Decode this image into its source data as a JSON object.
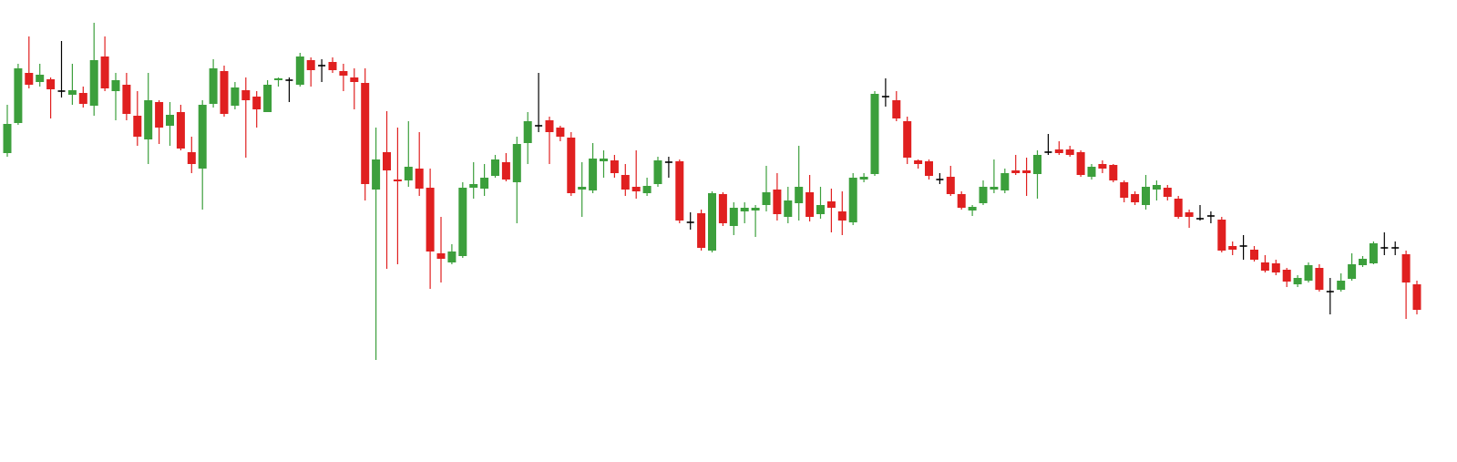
{
  "chart_data": {
    "type": "candlestick",
    "up_color": "#3c9f3c",
    "down_color": "#e02020",
    "flat_color": "#000000",
    "ylim": [
      0,
      500
    ],
    "open": [
      332,
      365,
      420,
      410,
      413,
      400,
      396,
      398,
      384,
      438,
      400,
      407,
      373,
      347,
      388,
      362,
      377,
      333,
      315,
      386,
      422,
      384,
      401,
      394,
      377,
      412,
      412,
      407,
      434,
      428,
      432,
      422,
      415,
      409,
      292,
      333,
      303,
      302,
      315,
      294,
      222,
      212,
      219,
      294,
      293,
      307,
      322,
      300,
      343,
      362,
      368,
      360,
      349,
      292,
      291,
      323,
      324,
      308,
      295,
      288,
      298,
      322,
      323,
      256,
      266,
      225,
      287,
      252,
      268,
      269,
      275,
      292,
      262,
      277,
      289,
      265,
      279,
      268,
      256,
      303,
      309,
      394,
      390,
      367,
      324,
      323,
      303,
      306,
      287,
      269,
      277,
      292,
      291,
      313,
      313,
      309,
      333,
      336,
      336,
      333,
      306,
      320,
      319,
      300,
      287,
      275,
      292,
      294,
      282,
      267,
      260,
      263,
      259,
      230,
      230,
      226,
      212,
      211,
      204,
      188,
      192,
      206,
      180,
      182,
      194,
      209,
      211,
      228,
      228,
      221,
      188
    ],
    "high": [
      385,
      430,
      460,
      430,
      415,
      455,
      430,
      405,
      475,
      460,
      420,
      420,
      400,
      420,
      390,
      388,
      385,
      350,
      390,
      435,
      428,
      410,
      415,
      400,
      412,
      415,
      415,
      442,
      437,
      435,
      437,
      430,
      425,
      425,
      360,
      378,
      360,
      367,
      355,
      315,
      262,
      232,
      300,
      322,
      320,
      330,
      332,
      350,
      377,
      420,
      372,
      362,
      355,
      322,
      343,
      335,
      330,
      320,
      335,
      305,
      328,
      328,
      325,
      267,
      270,
      290,
      289,
      278,
      278,
      275,
      318,
      310,
      295,
      340,
      308,
      295,
      293,
      290,
      310,
      310,
      400,
      414,
      400,
      372,
      325,
      325,
      310,
      318,
      290,
      275,
      302,
      325,
      315,
      330,
      327,
      335,
      353,
      345,
      340,
      335,
      320,
      324,
      320,
      302,
      290,
      308,
      302,
      297,
      285,
      270,
      275,
      268,
      262,
      235,
      242,
      230,
      220,
      215,
      206,
      198,
      212,
      210,
      195,
      200,
      222,
      219,
      235,
      245,
      235,
      225,
      192
    ],
    "low": [
      328,
      363,
      403,
      405,
      370,
      393,
      385,
      382,
      373,
      400,
      368,
      368,
      340,
      320,
      342,
      340,
      335,
      310,
      270,
      382,
      372,
      380,
      327,
      360,
      377,
      405,
      388,
      405,
      405,
      410,
      420,
      400,
      380,
      280,
      105,
      205,
      210,
      295,
      285,
      183,
      190,
      210,
      217,
      282,
      285,
      305,
      301,
      255,
      320,
      355,
      320,
      345,
      285,
      262,
      288,
      305,
      305,
      285,
      282,
      285,
      295,
      305,
      255,
      248,
      225,
      223,
      252,
      242,
      255,
      240,
      268,
      258,
      255,
      258,
      257,
      260,
      245,
      242,
      253,
      300,
      307,
      383,
      367,
      320,
      315,
      303,
      298,
      285,
      270,
      263,
      275,
      288,
      288,
      308,
      285,
      282,
      330,
      330,
      328,
      306,
      303,
      310,
      300,
      278,
      275,
      270,
      280,
      280,
      260,
      250,
      258,
      255,
      223,
      220,
      215,
      213,
      201,
      198,
      185,
      185,
      190,
      180,
      155,
      180,
      192,
      207,
      210,
      220,
      220,
      150,
      155
    ],
    "close": [
      364,
      425,
      407,
      418,
      402,
      400,
      401,
      386,
      434,
      403,
      412,
      375,
      350,
      390,
      360,
      374,
      337,
      320,
      385,
      425,
      375,
      404,
      390,
      380,
      407,
      414,
      412,
      438,
      423,
      428,
      423,
      417,
      410,
      298,
      325,
      313,
      301,
      317,
      293,
      224,
      216,
      224,
      294,
      298,
      305,
      325,
      303,
      342,
      367,
      362,
      355,
      350,
      288,
      295,
      326,
      326,
      310,
      292,
      290,
      296,
      324,
      322,
      258,
      256,
      228,
      288,
      255,
      272,
      272,
      272,
      289,
      265,
      280,
      295,
      262,
      275,
      272,
      258,
      305,
      306,
      397,
      394,
      370,
      327,
      320,
      307,
      303,
      287,
      272,
      273,
      295,
      295,
      310,
      310,
      310,
      330,
      333,
      332,
      330,
      308,
      317,
      315,
      302,
      283,
      278,
      295,
      297,
      284,
      262,
      262,
      260,
      263,
      225,
      226,
      230,
      215,
      203,
      201,
      191,
      195,
      209,
      182,
      180,
      192,
      210,
      216,
      233,
      228,
      228,
      190,
      160
    ]
  }
}
